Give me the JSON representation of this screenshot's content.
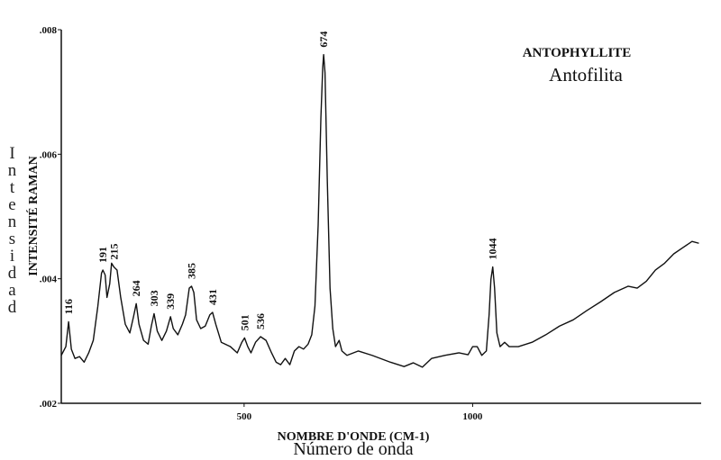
{
  "chart_data": {
    "type": "line",
    "title": "ANTOPHYLLITE",
    "subtitle": "Antofilita",
    "x_label": "NOMBRE D'ONDE (CM-1)",
    "x_label_2": "Número de onda",
    "y_label": "INTENSITÉ RAMAN",
    "y_label_2": "Intensidad",
    "xlim": [
      100,
      1500
    ],
    "xticks": [
      500,
      1000
    ],
    "ylim": [
      0.002,
      0.008
    ],
    "yticks": [
      {
        "value": 0.002,
        "label": ".002"
      },
      {
        "value": 0.004,
        "label": ".004"
      },
      {
        "value": 0.006,
        "label": ".006"
      },
      {
        "value": 0.008,
        "label": ".008"
      }
    ],
    "peak_labels": [
      116,
      191,
      215,
      264,
      303,
      339,
      385,
      431,
      501,
      536,
      674,
      1044
    ],
    "color": "#111111",
    "x": [
      100,
      110,
      116,
      122,
      130,
      140,
      150,
      160,
      170,
      180,
      188,
      191,
      196,
      200,
      206,
      210,
      215,
      222,
      230,
      240,
      250,
      258,
      264,
      270,
      280,
      290,
      297,
      303,
      310,
      320,
      330,
      339,
      345,
      355,
      365,
      372,
      380,
      385,
      390,
      396,
      405,
      415,
      425,
      431,
      438,
      450,
      470,
      485,
      495,
      501,
      508,
      515,
      525,
      536,
      548,
      560,
      570,
      580,
      590,
      600,
      610,
      620,
      630,
      640,
      648,
      655,
      662,
      668,
      672,
      674,
      677,
      682,
      688,
      694,
      700,
      708,
      714,
      725,
      750,
      780,
      820,
      850,
      870,
      890,
      910,
      940,
      970,
      990,
      1000,
      1010,
      1020,
      1030,
      1036,
      1040,
      1044,
      1048,
      1053,
      1060,
      1070,
      1080,
      1100,
      1130,
      1160,
      1190,
      1220,
      1250,
      1280,
      1310,
      1340,
      1360,
      1380,
      1400,
      1420,
      1440,
      1460,
      1480,
      1495
    ],
    "values": [
      0.00277,
      0.00291,
      0.00331,
      0.00287,
      0.00272,
      0.00275,
      0.00266,
      0.00281,
      0.00301,
      0.00356,
      0.00409,
      0.00414,
      0.00406,
      0.0037,
      0.00392,
      0.00425,
      0.00419,
      0.00414,
      0.0037,
      0.00327,
      0.00313,
      0.00339,
      0.0036,
      0.00327,
      0.00301,
      0.00295,
      0.00324,
      0.00344,
      0.00316,
      0.00301,
      0.00316,
      0.00339,
      0.0032,
      0.0031,
      0.00327,
      0.00342,
      0.00385,
      0.00388,
      0.00378,
      0.00334,
      0.0032,
      0.00324,
      0.00342,
      0.00346,
      0.00327,
      0.00298,
      0.00291,
      0.00281,
      0.00298,
      0.00305,
      0.00291,
      0.00281,
      0.00298,
      0.00307,
      0.00301,
      0.00281,
      0.00266,
      0.00262,
      0.00272,
      0.00262,
      0.00284,
      0.00291,
      0.00287,
      0.00295,
      0.0031,
      0.00356,
      0.00486,
      0.00659,
      0.00739,
      0.0076,
      0.00731,
      0.00558,
      0.00385,
      0.0032,
      0.00291,
      0.00301,
      0.00284,
      0.00277,
      0.00284,
      0.00277,
      0.00266,
      0.00259,
      0.00265,
      0.00258,
      0.00272,
      0.00277,
      0.00281,
      0.00278,
      0.00291,
      0.00291,
      0.00277,
      0.00284,
      0.00342,
      0.00399,
      0.00419,
      0.00385,
      0.00313,
      0.00291,
      0.00298,
      0.00291,
      0.00291,
      0.00298,
      0.0031,
      0.00324,
      0.00334,
      0.00349,
      0.00363,
      0.00378,
      0.00388,
      0.00385,
      0.00396,
      0.00414,
      0.00425,
      0.0044,
      0.0045,
      0.0046,
      0.00457
    ]
  }
}
